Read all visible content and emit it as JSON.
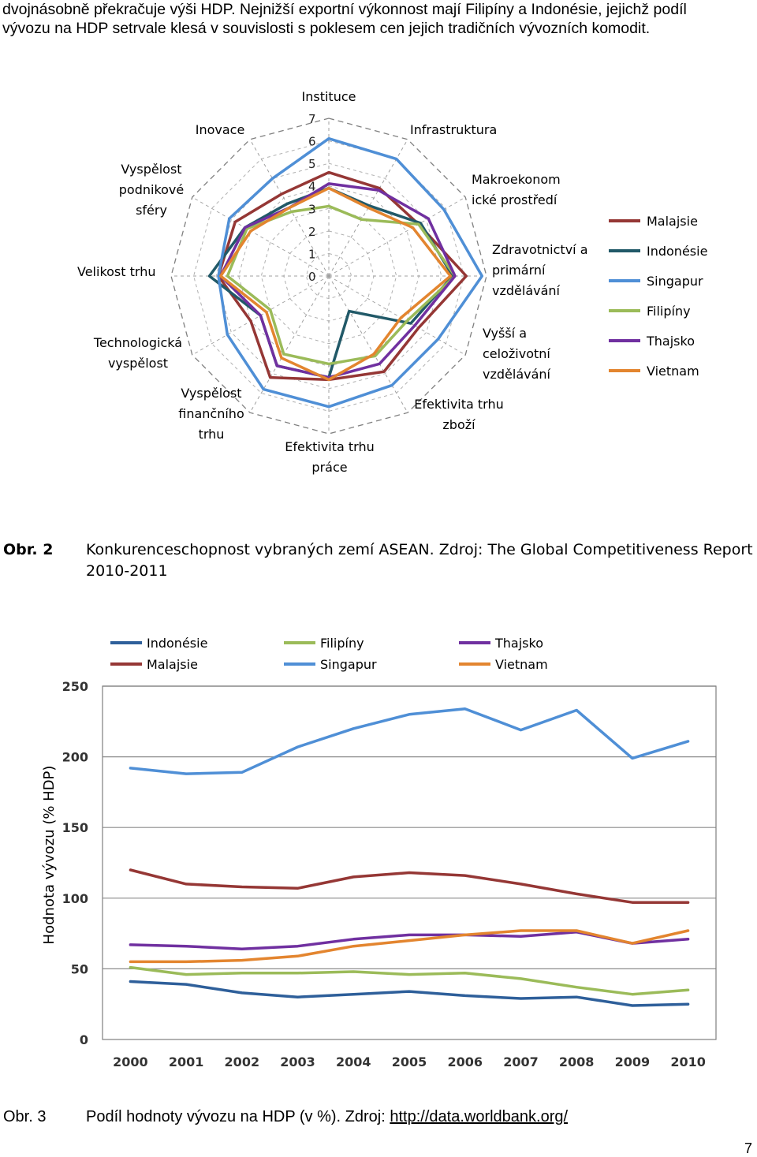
{
  "intro": {
    "line1": "dvojnásobně překračuje výši HDP. Nejnižší exportní výkonnost mají Filipíny a Indonésie, jejichž podíl",
    "line2": "vývozu na HDP setrvale klesá v souvislosti s poklesem cen jejich tradičních vývozních komodit."
  },
  "caption2": {
    "number": "Obr. 2",
    "text": "Konkurenceschopnost vybraných zemí ASEAN. Zdroj: The Global Competitiveness Report 2010-2011"
  },
  "caption3": {
    "number": "Obr. 3",
    "text": "Podíl hodnoty vývozu na HDP (v %). Zdroj: ",
    "link": "http://data.worldbank.org/"
  },
  "page_number": "7",
  "colors": {
    "malajsie": "#953735",
    "indonesie": "#215968",
    "singapur": "#4f8fd6",
    "filipiny": "#9bbb59",
    "thajsko": "#7030a0",
    "vietnam": "#e3852f",
    "indonesie_line": "#2e5f9a"
  },
  "chart_data": [
    {
      "type": "radar",
      "title": "",
      "axes": [
        [
          "Instituce"
        ],
        [
          "Infrastruktura"
        ],
        [
          "Makroekonom",
          "ické prostředí"
        ],
        [
          "Zdravotnictví a",
          "primární",
          "vzdělávání"
        ],
        [
          "Vyšší a",
          "celoživotní",
          "vzdělávání"
        ],
        [
          "Efektivita trhu",
          "zboží"
        ],
        [
          "Efektivita trhu",
          "práce"
        ],
        [
          "Vyspělost",
          "finančního",
          "trhu"
        ],
        [
          "Technologická",
          "vyspělost"
        ],
        [
          "Velikost trhu"
        ],
        [
          "Vyspělost",
          "podnikové",
          "sféry"
        ],
        [
          "Inovace"
        ]
      ],
      "scale": {
        "min": 0,
        "max": 7,
        "ticks": [
          "0",
          "1",
          "2",
          "3",
          "4",
          "5",
          "6",
          "7"
        ]
      },
      "legend_position": "right",
      "series": [
        {
          "name": "Malajsie",
          "color_key": "malajsie",
          "values": [
            4.6,
            4.5,
            4.6,
            6.1,
            4.6,
            4.9,
            4.6,
            5.2,
            4.0,
            4.9,
            4.8,
            4.2
          ]
        },
        {
          "name": "Indonésie",
          "color_key": "indonesie",
          "values": [
            3.9,
            3.6,
            4.7,
            5.5,
            4.2,
            1.8,
            4.5,
            4.6,
            3.5,
            5.3,
            4.3,
            3.7
          ]
        },
        {
          "name": "Singapur",
          "color_key": "singapur",
          "values": [
            6.1,
            6.0,
            5.9,
            6.8,
            5.6,
            5.6,
            5.8,
            5.8,
            5.2,
            4.9,
            5.1,
            5.0
          ]
        },
        {
          "name": "Filipíny",
          "color_key": "filipiny",
          "values": [
            3.1,
            2.9,
            4.6,
            5.6,
            4.0,
            4.1,
            3.9,
            4.0,
            3.0,
            4.5,
            4.2,
            3.3
          ]
        },
        {
          "name": "Thajsko",
          "color_key": "thajsko",
          "values": [
            4.1,
            4.4,
            5.1,
            5.6,
            4.4,
            4.5,
            4.5,
            4.6,
            3.5,
            4.8,
            4.3,
            3.5
          ]
        },
        {
          "name": "Vietnam",
          "color_key": "vietnam",
          "values": [
            3.9,
            3.5,
            4.3,
            5.4,
            3.7,
            4.0,
            4.6,
            4.2,
            3.2,
            4.8,
            4.0,
            3.5
          ]
        }
      ]
    },
    {
      "type": "line",
      "title": "",
      "xlabel": "",
      "ylabel": "Hodnota vývozu (% HDP)",
      "x": [
        "2000",
        "2001",
        "2002",
        "2003",
        "2004",
        "2005",
        "2006",
        "2007",
        "2008",
        "2009",
        "2010"
      ],
      "ylim": [
        0,
        250
      ],
      "yticks": [
        "0",
        "50",
        "100",
        "150",
        "200",
        "250"
      ],
      "legend_position": "top",
      "series": [
        {
          "name": "Indonésie",
          "color_key": "indonesie_line",
          "values": [
            41,
            39,
            33,
            30,
            32,
            34,
            31,
            29,
            30,
            24,
            25
          ]
        },
        {
          "name": "Malajsie",
          "color_key": "malajsie",
          "values": [
            120,
            110,
            108,
            107,
            115,
            118,
            116,
            110,
            103,
            97,
            97
          ]
        },
        {
          "name": "Filipíny",
          "color_key": "filipiny",
          "values": [
            51,
            46,
            47,
            47,
            48,
            46,
            47,
            43,
            37,
            32,
            35
          ]
        },
        {
          "name": "Singapur",
          "color_key": "singapur",
          "values": [
            192,
            188,
            189,
            207,
            220,
            230,
            234,
            219,
            233,
            199,
            211
          ]
        },
        {
          "name": "Thajsko",
          "color_key": "thajsko",
          "values": [
            67,
            66,
            64,
            66,
            71,
            74,
            74,
            73,
            76,
            68,
            71
          ]
        },
        {
          "name": "Vietnam",
          "color_key": "vietnam",
          "values": [
            55,
            55,
            56,
            59,
            66,
            70,
            74,
            77,
            77,
            68,
            77
          ]
        }
      ]
    }
  ]
}
